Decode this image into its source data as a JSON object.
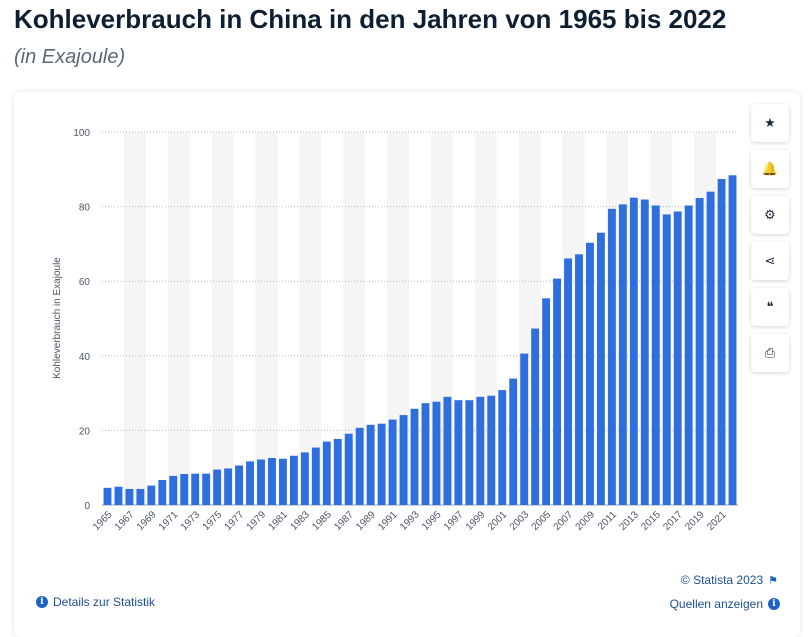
{
  "title": "Kohleverbrauch in China in den Jahren von 1965 bis 2022",
  "subtitle": "(in Exajoule)",
  "toolbar": [
    {
      "name": "star-icon",
      "glyph": "★"
    },
    {
      "name": "bell-icon",
      "glyph": "🔔"
    },
    {
      "name": "gear-icon",
      "glyph": "⚙"
    },
    {
      "name": "share-icon",
      "glyph": "⋖"
    },
    {
      "name": "quote-icon",
      "glyph": "❝"
    },
    {
      "name": "print-icon",
      "glyph": "⎙"
    }
  ],
  "footer": {
    "details": "Details zur Statistik",
    "copyright": "© Statista 2023",
    "sources": "Quellen anzeigen"
  },
  "colors": {
    "bar": "#2f6fdd",
    "stripe": "#f5f5f5",
    "accent": "#1d4f91"
  },
  "chart_data": {
    "type": "bar",
    "title": "Kohleverbrauch in China in den Jahren von 1965 bis 2022",
    "subtitle": "(in Exajoule)",
    "xlabel": "",
    "ylabel": "Kohleverbrauch in Exajoule",
    "ylim": [
      0,
      100
    ],
    "yticks": [
      0,
      20,
      40,
      60,
      80,
      100
    ],
    "grid": true,
    "categories": [
      "1965",
      "1966",
      "1967",
      "1968",
      "1969",
      "1970",
      "1971",
      "1972",
      "1973",
      "1974",
      "1975",
      "1976",
      "1977",
      "1978",
      "1979",
      "1980",
      "1981",
      "1982",
      "1983",
      "1984",
      "1985",
      "1986",
      "1987",
      "1988",
      "1989",
      "1990",
      "1991",
      "1992",
      "1993",
      "1994",
      "1995",
      "1996",
      "1997",
      "1998",
      "1999",
      "2000",
      "2001",
      "2002",
      "2003",
      "2004",
      "2005",
      "2006",
      "2007",
      "2008",
      "2009",
      "2010",
      "2011",
      "2012",
      "2013",
      "2014",
      "2015",
      "2016",
      "2017",
      "2018",
      "2019",
      "2020",
      "2021",
      "2022"
    ],
    "tick_labels": [
      "1965",
      "1967",
      "1969",
      "1971",
      "1973",
      "1975",
      "1977",
      "1979",
      "1981",
      "1983",
      "1985",
      "1987",
      "1989",
      "1991",
      "1993",
      "1995",
      "1997",
      "1999",
      "2001",
      "2003",
      "2005",
      "2007",
      "2009",
      "2011",
      "2013",
      "2015",
      "2017",
      "2019",
      "2021"
    ],
    "values": [
      4.6,
      4.9,
      4.3,
      4.3,
      5.2,
      6.7,
      7.8,
      8.3,
      8.4,
      8.4,
      9.5,
      9.8,
      10.6,
      11.7,
      12.2,
      12.6,
      12.4,
      13.2,
      14.1,
      15.4,
      17.0,
      17.7,
      19.1,
      20.7,
      21.5,
      21.8,
      22.9,
      24.1,
      25.8,
      27.3,
      27.7,
      29.0,
      28.1,
      28.1,
      29.0,
      29.3,
      30.8,
      33.9,
      40.6,
      47.3,
      55.4,
      60.7,
      66.1,
      67.2,
      70.3,
      73.0,
      79.4,
      80.6,
      82.4,
      81.9,
      80.3,
      77.9,
      78.7,
      80.3,
      82.3,
      84.0,
      87.4,
      88.4
    ]
  }
}
